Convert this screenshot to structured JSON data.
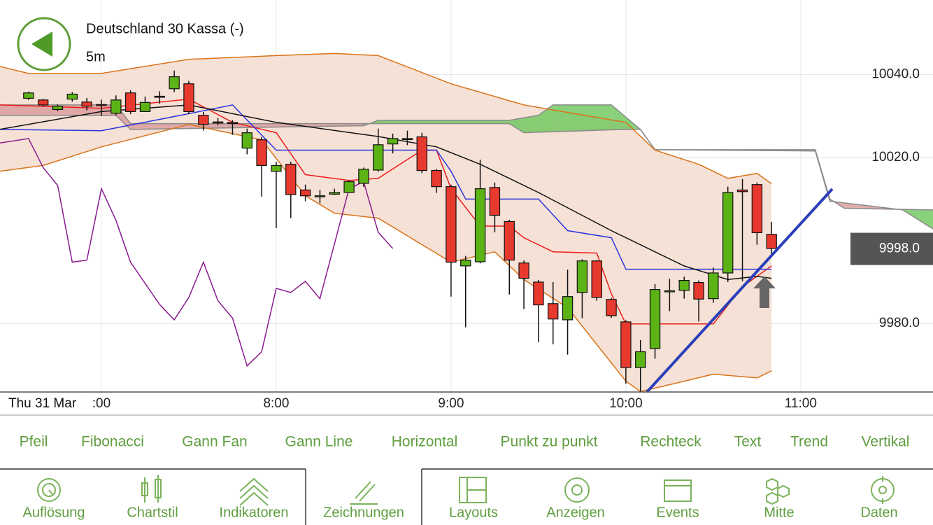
{
  "header": {
    "title": "Deutschland 30 Kassa (-)",
    "interval": "5m"
  },
  "chart_data": {
    "type": "candlestick",
    "date_label": "Thu 31 Mar",
    "xlim": [
      385.2,
      705.4
    ],
    "ylim": [
      9963.5,
      10058
    ],
    "xticks": [
      {
        "value": 420,
        "label": ":00"
      },
      {
        "value": 480,
        "label": "8:00"
      },
      {
        "value": 540,
        "label": "9:00"
      },
      {
        "value": 600,
        "label": "10:00"
      },
      {
        "value": 660,
        "label": "11:00"
      }
    ],
    "yticks": [
      {
        "value": 10040,
        "label": "10040.0"
      },
      {
        "value": 10020,
        "label": "10020.0"
      },
      {
        "value": 9980,
        "label": "9980.0"
      }
    ],
    "grid": true,
    "up_color": "#5cb315",
    "down_color": "#e8392e",
    "last_price": {
      "value": 9998,
      "label": "9998.0"
    },
    "x": [
      395,
      400,
      405,
      410,
      415,
      420,
      425,
      430,
      435,
      440,
      445,
      450,
      455,
      460,
      465,
      470,
      475,
      480,
      485,
      490,
      495,
      500,
      505,
      510,
      515,
      520,
      525,
      530,
      535,
      540,
      545,
      550,
      555,
      560,
      565,
      570,
      575,
      580,
      585,
      590,
      595,
      600,
      605,
      610,
      615,
      620,
      625,
      630,
      635,
      640,
      645,
      650
    ],
    "open": [
      10034.3,
      10033.9,
      10031.6,
      10034.1,
      10033.4,
      10032.8,
      10030.7,
      10035.6,
      10031.1,
      10034.8,
      10036.6,
      10037.8,
      10030.2,
      10028.6,
      10028.5,
      10022.3,
      10024.3,
      10016.7,
      10018.4,
      10012.2,
      10010.6,
      10011.2,
      10011.6,
      10013.8,
      10017.0,
      10023.3,
      10024.6,
      10025.0,
      10016.9,
      10013.0,
      9993.9,
      9994.9,
      10012.8,
      10004.6,
      9994.6,
      9990.0,
      9984.8,
      9980.9,
      9987.5,
      9995.1,
      9985.8,
      9980.4,
      9969.4,
      9974.0,
      9987.8,
      9988.0,
      9989.9,
      9986.0,
      9992.2,
      10012.2,
      10013.5,
      10001.5
    ],
    "high": [
      10035.9,
      10034.2,
      10032.8,
      10035.8,
      10034.4,
      10034.0,
      10035.0,
      10036.2,
      10034.7,
      10036.0,
      10041.0,
      10038.5,
      10031.0,
      10029.5,
      10029.0,
      10027.0,
      10025.0,
      10019.0,
      10019.0,
      10013.5,
      10012.2,
      10012.5,
      10014.5,
      10017.6,
      10027.0,
      10025.8,
      10026.5,
      10026.0,
      10017.3,
      10013.5,
      9996.3,
      10019.5,
      10014.0,
      10005.0,
      9995.2,
      9990.5,
      9990.0,
      9993.0,
      9995.5,
      9995.3,
      9986.2,
      9980.8,
      9976.0,
      9989.5,
      9990.8,
      9991.3,
      9990.4,
      9993.5,
      10013.0,
      10014.8,
      10014.0,
      10004.5
    ],
    "low": [
      10033.9,
      10032.3,
      10031.2,
      10033.5,
      10031.4,
      10030.0,
      10030.2,
      10030.5,
      10031.0,
      10033.0,
      10035.8,
      10030.5,
      10026.5,
      10027.8,
      10025.5,
      10020.8,
      10010.6,
      10003.0,
      10005.4,
      10009.5,
      10009.0,
      10011.0,
      10011.5,
      10013.0,
      10016.6,
      10021.0,
      10023.0,
      10016.3,
      10011.5,
      9986.5,
      9979.1,
      9994.5,
      10002.0,
      9987.0,
      9983.5,
      9975.5,
      9975.0,
      9972.5,
      9981.3,
      9985.5,
      9981.4,
      9965.5,
      9963.6,
      9971.5,
      9983.0,
      9986.0,
      9980.5,
      9985.0,
      9990.0,
      9990.2,
      9999.0,
      9996.4
    ],
    "close": [
      10035.6,
      10032.7,
      10032.4,
      10035.3,
      10032.4,
      10032.6,
      10033.9,
      10031.1,
      10033.3,
      10034.7,
      10039.5,
      10031.1,
      10028.0,
      10028.5,
      10028.2,
      10026.0,
      10018.1,
      10018.1,
      10011.1,
      10010.8,
      10010.8,
      10011.6,
      10014.2,
      10017.2,
      10023.1,
      10024.6,
      10024.6,
      10016.9,
      10013.0,
      9994.8,
      9995.3,
      10012.5,
      10006.1,
      9995.3,
      9990.9,
      9984.5,
      9981.1,
      9986.5,
      9995.1,
      9986.3,
      9981.9,
      9969.4,
      9973.2,
      9988.2,
      9987.9,
      9990.4,
      9985.9,
      9992.2,
      10011.6,
      10011.8,
      10001.9,
      9998.1
    ],
    "bollinger": {
      "color": "#d9731a",
      "fill": "#f5dccf",
      "upper": {
        "x": [
          385,
          395,
          420,
          450,
          480,
          500,
          515,
          540,
          565,
          600,
          610,
          625,
          635,
          645,
          650
        ],
        "values": [
          10042.0,
          10040.3,
          10040.3,
          10043.7,
          10044.6,
          10045.1,
          10044.6,
          10037.8,
          10032.7,
          10028.5,
          10021.8,
          10018.4,
          10015.0,
          10016.2,
          10013.7
        ]
      },
      "lower": {
        "x": [
          385,
          400,
          420,
          450,
          475,
          490,
          500,
          515,
          540,
          555,
          565,
          580,
          600,
          605,
          620,
          630,
          645,
          650
        ],
        "values": [
          10016.7,
          10018.1,
          10022.6,
          10028.0,
          10024.3,
          10010.8,
          10006.6,
          10005.4,
          9994.8,
          9997.3,
          9990.6,
          9983.8,
          9966.1,
          9963.6,
          9966.1,
          9967.8,
          9966.9,
          9968.6
        ]
      }
    },
    "ichimoku_cloud": {
      "up_color": "#6cc65a",
      "down_color": "#d99a9a",
      "edge_color": "#8a8a8a",
      "span_a": {
        "x": [
          385,
          425,
          430,
          510,
          515,
          560,
          570,
          575,
          595,
          605,
          610,
          665,
          670,
          675,
          705.4
        ],
        "values": [
          10030.2,
          10030.2,
          10026.8,
          10027.7,
          10029.0,
          10029.0,
          10030.2,
          10032.7,
          10032.7,
          10026.8,
          10021.9,
          10021.9,
          10010.0,
          10007.8,
          10007.4
        ]
      },
      "span_b": {
        "x": [
          385,
          425,
          430,
          560,
          565,
          600,
          605,
          610,
          665,
          670,
          695,
          705.4
        ],
        "values": [
          10032.7,
          10032.7,
          10028.2,
          10028.2,
          10026.0,
          10026.8,
          10026.8,
          10021.9,
          10021.6,
          10009.5,
          10007.4,
          10002.8
        ]
      }
    },
    "lines": [
      {
        "color": "#ee1c1c",
        "x": [
          385,
          420,
          450,
          465,
          480,
          490,
          505,
          515,
          530,
          535,
          540,
          550,
          560,
          565,
          575,
          590,
          595,
          600,
          630,
          640,
          650
        ],
        "values": [
          10032.7,
          10031.9,
          10034.1,
          10028.5,
          10026.0,
          10015.9,
          10014.5,
          10015.0,
          10021.8,
          10021.8,
          10012.5,
          10003.5,
          10003.5,
          10000.7,
          9997.3,
          9997.0,
          9987.2,
          9979.9,
          9979.9,
          9988.9,
          9993.9
        ]
      },
      {
        "color": "#2a35e0",
        "x": [
          385,
          420,
          450,
          465,
          480,
          535,
          540,
          545,
          570,
          580,
          595,
          600,
          650
        ],
        "values": [
          10026.8,
          10026.5,
          10030.6,
          10032.7,
          10021.8,
          10021.8,
          10016.7,
          10010.0,
          10010.0,
          10002.4,
          10000.7,
          9993.1,
          9993.1
        ]
      },
      {
        "color": "#111111",
        "x": [
          385,
          420,
          450,
          480,
          515,
          535,
          550,
          570,
          595,
          620,
          635,
          645,
          650
        ],
        "values": [
          10026.8,
          10031.1,
          10032.7,
          10028.5,
          10025.1,
          10022.6,
          10018.4,
          10011.6,
          10002.4,
          9993.9,
          9990.6,
          9991.4,
          9990.9
        ]
      },
      {
        "color": "#8a1a8f",
        "x": [
          385,
          395,
          400,
          405,
          410,
          415,
          420,
          425,
          430,
          440,
          445,
          450,
          455,
          460,
          465,
          470,
          475,
          480,
          485,
          490,
          495,
          505,
          510,
          515,
          520
        ],
        "values": [
          10023.5,
          10024.6,
          10017.6,
          10013.3,
          9994.8,
          9995.3,
          10012.5,
          10004.9,
          9994.8,
          9984.6,
          9980.9,
          9986.3,
          9994.8,
          9985.5,
          9981.3,
          9969.8,
          9973.2,
          9988.5,
          9987.5,
          9990.2,
          9986.0,
          10012.5,
          10014.2,
          10002.0,
          9998.1
        ]
      }
    ]
  },
  "toolbar": {
    "items": [
      "Pfeil",
      "Fibonacci",
      "Gann Fan",
      "Gann Line",
      "Horizontal",
      "Punkt zu punkt",
      "Rechteck",
      "Text",
      "Trend",
      "Vertikal"
    ]
  },
  "tabs": {
    "items": [
      "Auflösung",
      "Chartstil",
      "Indikatoren",
      "Zeichnungen",
      "Layouts",
      "Anzeigen",
      "Events",
      "Mitte",
      "Daten"
    ]
  }
}
